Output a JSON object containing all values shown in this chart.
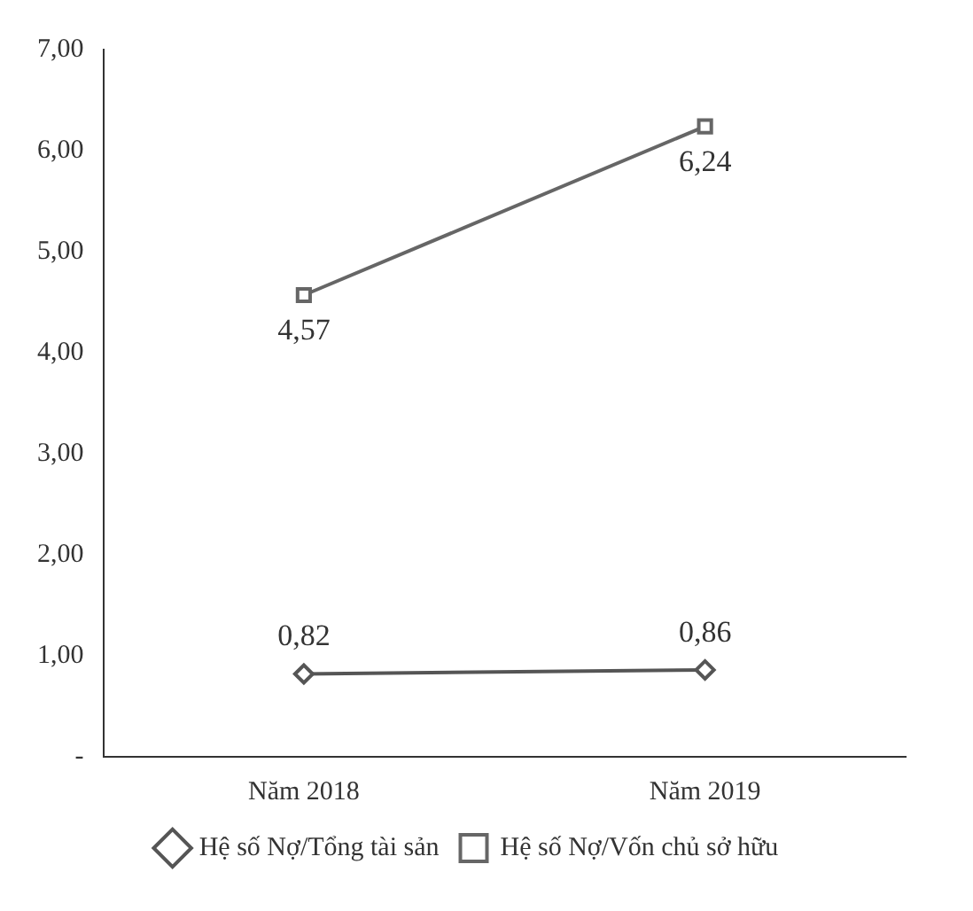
{
  "chart_data": {
    "type": "line",
    "categories": [
      "Năm 2018",
      "Năm 2019"
    ],
    "series": [
      {
        "name": "Hệ số Nợ/Tổng tài sản",
        "color": "#555555",
        "marker": "diamond",
        "values": [
          0.82,
          0.86
        ],
        "value_labels": [
          "0,82",
          "0,86"
        ]
      },
      {
        "name": "Hệ số Nợ/Vốn chủ sở hữu",
        "color": "#666666",
        "marker": "square",
        "values": [
          4.57,
          6.24
        ],
        "value_labels": [
          "4,57",
          "6,24"
        ]
      }
    ],
    "ylim": [
      0,
      7
    ],
    "yticks": [
      {
        "value": 0,
        "label": "-"
      },
      {
        "value": 1,
        "label": "1,00"
      },
      {
        "value": 2,
        "label": "2,00"
      },
      {
        "value": 3,
        "label": "3,00"
      },
      {
        "value": 4,
        "label": "4,00"
      },
      {
        "value": 5,
        "label": "5,00"
      },
      {
        "value": 6,
        "label": "6,00"
      },
      {
        "value": 7,
        "label": "7,00"
      }
    ],
    "grid": false,
    "legend": "bottom"
  }
}
